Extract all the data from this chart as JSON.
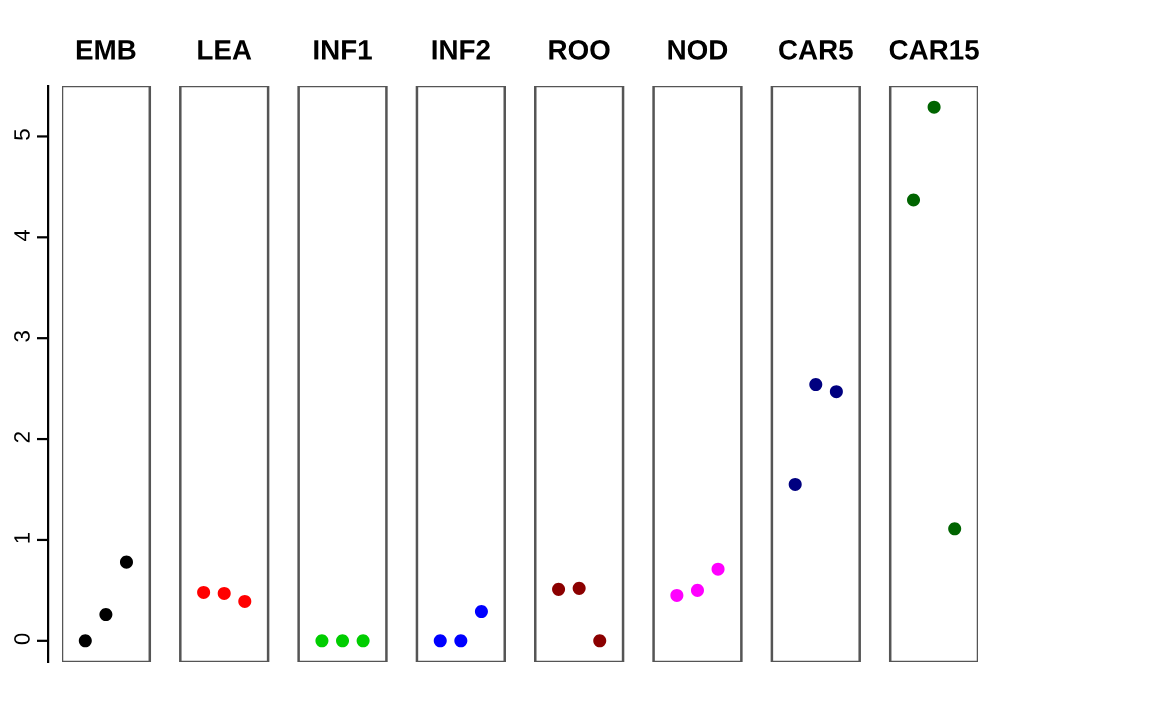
{
  "chart_data": {
    "type": "scatter",
    "categories": [
      "EMB",
      "LEA",
      "INF1",
      "INF2",
      "ROO",
      "NOD",
      "CAR5",
      "CAR15"
    ],
    "series": [
      {
        "colors": [
          "#000000",
          "#ff0000",
          "#00cd00",
          "#0000ff",
          "#8b0000",
          "#ff00ff",
          "#000080",
          "#006400"
        ],
        "values": [
          0,
          0.48,
          0,
          0,
          0.51,
          0.45,
          1.55,
          4.37
        ]
      },
      {
        "colors": [
          "#000000",
          "#ff0000",
          "#00cd00",
          "#0000ff",
          "#8b0000",
          "#ff00ff",
          "#000080",
          "#006400"
        ],
        "values": [
          0.26,
          0.47,
          0,
          0,
          0.52,
          0.5,
          2.54,
          5.29
        ]
      },
      {
        "colors": [
          "#000000",
          "#ff0000",
          "#00cd00",
          "#0000ff",
          "#8b0000",
          "#ff00ff",
          "#000080",
          "#006400"
        ],
        "values": [
          0.78,
          0.39,
          0,
          0.29,
          0,
          0.71,
          2.47,
          1.11
        ]
      }
    ],
    "ylim": [
      -0.21,
      5.5
    ],
    "yticks": [
      0,
      1,
      2,
      3,
      4,
      5
    ],
    "marker": "circle"
  }
}
